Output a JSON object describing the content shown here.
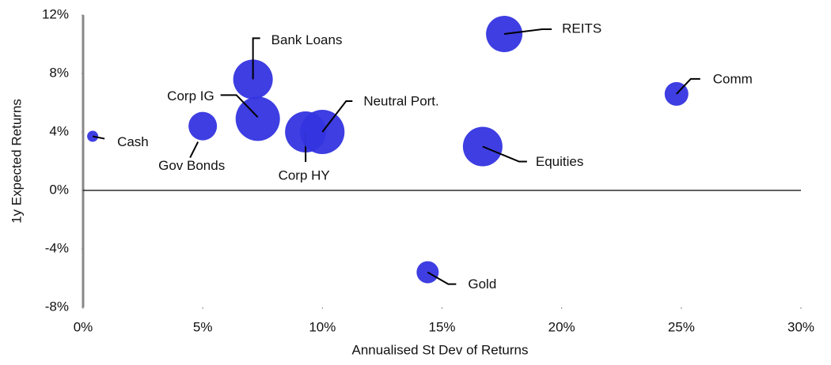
{
  "chart_data": {
    "type": "scatter",
    "x_label": "Annualised St Dev of Returns",
    "y_label": "1y Expected Returns",
    "categories": [
      "Cash",
      "Gov Bonds",
      "Corp IG",
      "Bank Loans",
      "Corp HY",
      "Neutral Port.",
      "Equities",
      "REITS",
      "Comm",
      "Gold"
    ],
    "x": [
      0.4,
      5.0,
      7.3,
      7.1,
      9.3,
      10.0,
      16.7,
      17.6,
      24.8,
      14.4
    ],
    "values": [
      3.7,
      4.4,
      4.9,
      7.6,
      4.0,
      4.0,
      3.0,
      10.7,
      6.6,
      -5.6
    ],
    "sizes": [
      7,
      18,
      28,
      25,
      26,
      28,
      25,
      23,
      15,
      14
    ],
    "color": "#3434e0",
    "xlim": [
      0,
      30
    ],
    "xticks": [
      {
        "value": 0,
        "label": "0%"
      },
      {
        "value": 5,
        "label": "5%"
      },
      {
        "value": 10,
        "label": "10%"
      },
      {
        "value": 15,
        "label": "15%"
      },
      {
        "value": 20,
        "label": "20%"
      },
      {
        "value": 25,
        "label": "25%"
      },
      {
        "value": 30,
        "label": "30%"
      }
    ],
    "ylim": [
      -8,
      12
    ],
    "yticks": [
      {
        "value": -8,
        "label": "-8%"
      },
      {
        "value": -4,
        "label": "-4%"
      },
      {
        "value": 0,
        "label": "0%"
      },
      {
        "value": 4,
        "label": "4%"
      },
      {
        "value": 8,
        "label": "8%"
      },
      {
        "value": 12,
        "label": "12%"
      }
    ]
  }
}
